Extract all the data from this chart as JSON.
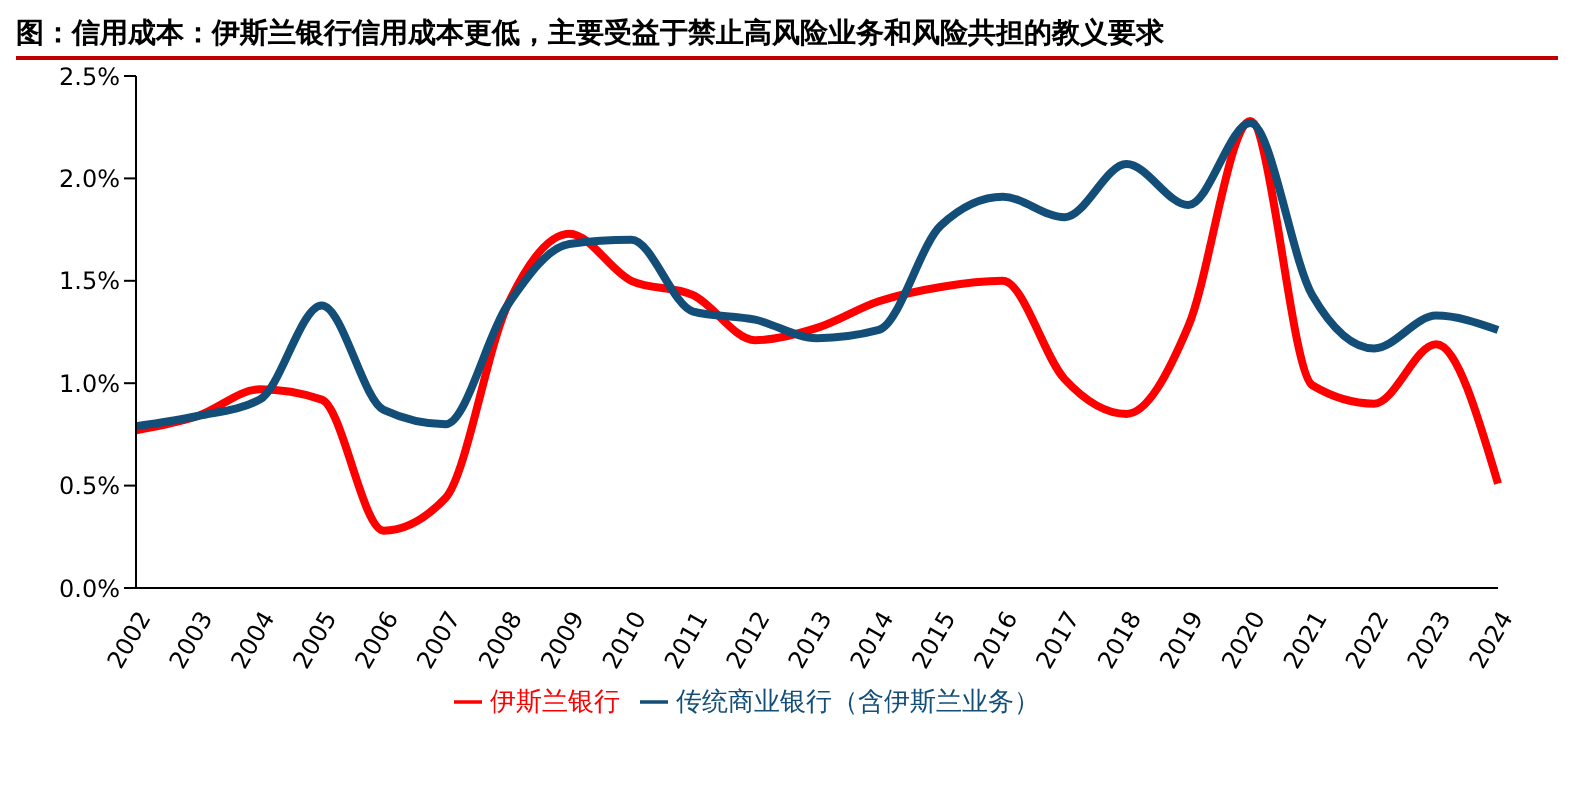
{
  "chart_data": {
    "type": "line",
    "title": "图：信用成本：伊斯兰银行信用成本更低，主要受益于禁止高风险业务和风险共担的教义要求",
    "categories": [
      "2002",
      "2003",
      "2004",
      "2005",
      "2006",
      "2007",
      "2008",
      "2009",
      "2010",
      "2011",
      "2012",
      "2013",
      "2014",
      "2015",
      "2016",
      "2017",
      "2018",
      "2019",
      "2020",
      "2021",
      "2022",
      "2023",
      "2024"
    ],
    "series": [
      {
        "name": "伊斯兰银行",
        "color": "#ff0000",
        "values": [
          0.77,
          0.84,
          0.97,
          0.92,
          0.28,
          0.44,
          1.38,
          1.73,
          1.5,
          1.43,
          1.21,
          1.27,
          1.4,
          1.47,
          1.5,
          1.02,
          0.85,
          1.28,
          2.28,
          0.99,
          0.9,
          1.19,
          0.51
        ]
      },
      {
        "name": "传统商业银行（含伊斯兰业务）",
        "color": "#124e78",
        "values": [
          0.79,
          0.84,
          0.92,
          1.38,
          0.87,
          0.8,
          1.38,
          1.68,
          1.7,
          1.35,
          1.31,
          1.22,
          1.26,
          1.77,
          1.91,
          1.81,
          2.07,
          1.87,
          2.27,
          1.43,
          1.17,
          1.33,
          1.26
        ]
      }
    ],
    "ylim": [
      0,
      2.5
    ],
    "yticks": [
      {
        "value": 0,
        "label": "0.0%"
      },
      {
        "value": 0.5,
        "label": "0.5%"
      },
      {
        "value": 1,
        "label": "1.0%"
      },
      {
        "value": 1.5,
        "label": "1.5%"
      },
      {
        "value": 2,
        "label": "2.0%"
      },
      {
        "value": 2.5,
        "label": "2.5%"
      }
    ],
    "grid": false,
    "legend": "bottom",
    "marker": "none",
    "line_style": "solid"
  }
}
